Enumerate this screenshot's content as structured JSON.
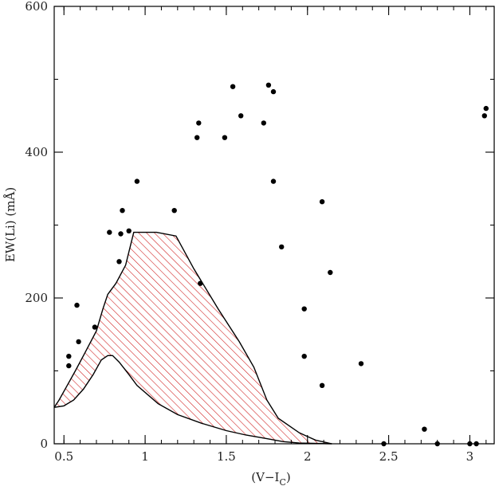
{
  "chart_data": {
    "type": "scatter",
    "xlabel": "(V−I",
    "xlabel_sub": "C",
    "xlabel_close": ")",
    "ylabel": "EW(Li) (mÅ)",
    "xlim": [
      0.44,
      3.15
    ],
    "ylim": [
      0,
      600
    ],
    "grid": false,
    "x_ticks": [
      {
        "value": 0.5,
        "label": "0.5"
      },
      {
        "value": 1.0,
        "label": "1"
      },
      {
        "value": 1.5,
        "label": "1.5"
      },
      {
        "value": 2.0,
        "label": "2"
      },
      {
        "value": 2.5,
        "label": "2.5"
      },
      {
        "value": 3.0,
        "label": "3"
      }
    ],
    "x_minor_step": 0.1,
    "y_ticks": [
      {
        "value": 0,
        "label": "0"
      },
      {
        "value": 200,
        "label": "200"
      },
      {
        "value": 400,
        "label": "400"
      },
      {
        "value": 600,
        "label": "600"
      }
    ],
    "y_minor_step": 100,
    "series": [
      {
        "marker": "filled-circle",
        "color": "#000000",
        "points": [
          [
            0.53,
            120
          ],
          [
            0.53,
            107
          ],
          [
            0.58,
            190
          ],
          [
            0.59,
            140
          ],
          [
            0.69,
            160
          ],
          [
            0.78,
            290
          ],
          [
            0.84,
            250
          ],
          [
            0.85,
            288
          ],
          [
            0.86,
            320
          ],
          [
            0.9,
            292
          ],
          [
            0.95,
            360
          ],
          [
            1.18,
            320
          ],
          [
            1.32,
            420
          ],
          [
            1.33,
            440
          ],
          [
            1.34,
            220
          ],
          [
            1.49,
            420
          ],
          [
            1.54,
            490
          ],
          [
            1.59,
            450
          ],
          [
            1.73,
            440
          ],
          [
            1.76,
            492
          ],
          [
            1.79,
            483
          ],
          [
            1.79,
            360
          ],
          [
            1.84,
            270
          ],
          [
            1.98,
            185
          ],
          [
            1.98,
            120
          ],
          [
            2.09,
            332
          ],
          [
            2.09,
            80
          ],
          [
            2.14,
            235
          ],
          [
            2.33,
            110
          ],
          [
            2.47,
            0
          ],
          [
            2.72,
            20
          ],
          [
            2.8,
            0
          ],
          [
            3.0,
            0
          ],
          [
            3.04,
            0
          ],
          [
            3.09,
            450
          ],
          [
            3.1,
            460
          ]
        ]
      }
    ],
    "band": {
      "fill": "hatched",
      "color": "#cc1111",
      "upper": [
        [
          0.44,
          50
        ],
        [
          0.47,
          60
        ],
        [
          0.52,
          80
        ],
        [
          0.57,
          100
        ],
        [
          0.63,
          125
        ],
        [
          0.7,
          155
        ],
        [
          0.74,
          185
        ],
        [
          0.77,
          205
        ],
        [
          0.82,
          220
        ],
        [
          0.88,
          245
        ],
        [
          0.93,
          290
        ],
        [
          1.07,
          290
        ],
        [
          1.19,
          285
        ],
        [
          1.3,
          240
        ],
        [
          1.45,
          185
        ],
        [
          1.58,
          140
        ],
        [
          1.67,
          105
        ],
        [
          1.75,
          60
        ],
        [
          1.82,
          35
        ],
        [
          1.95,
          15
        ],
        [
          2.05,
          5
        ],
        [
          2.15,
          0
        ]
      ],
      "lower": [
        [
          0.44,
          50
        ],
        [
          0.5,
          52
        ],
        [
          0.56,
          60
        ],
        [
          0.62,
          75
        ],
        [
          0.68,
          95
        ],
        [
          0.73,
          115
        ],
        [
          0.77,
          121
        ],
        [
          0.8,
          121
        ],
        [
          0.84,
          112
        ],
        [
          0.9,
          95
        ],
        [
          0.95,
          80
        ],
        [
          1.08,
          55
        ],
        [
          1.2,
          40
        ],
        [
          1.35,
          28
        ],
        [
          1.5,
          18
        ],
        [
          1.62,
          12
        ],
        [
          1.75,
          7
        ],
        [
          1.85,
          3
        ],
        [
          1.95,
          1
        ],
        [
          2.15,
          0
        ]
      ]
    }
  }
}
